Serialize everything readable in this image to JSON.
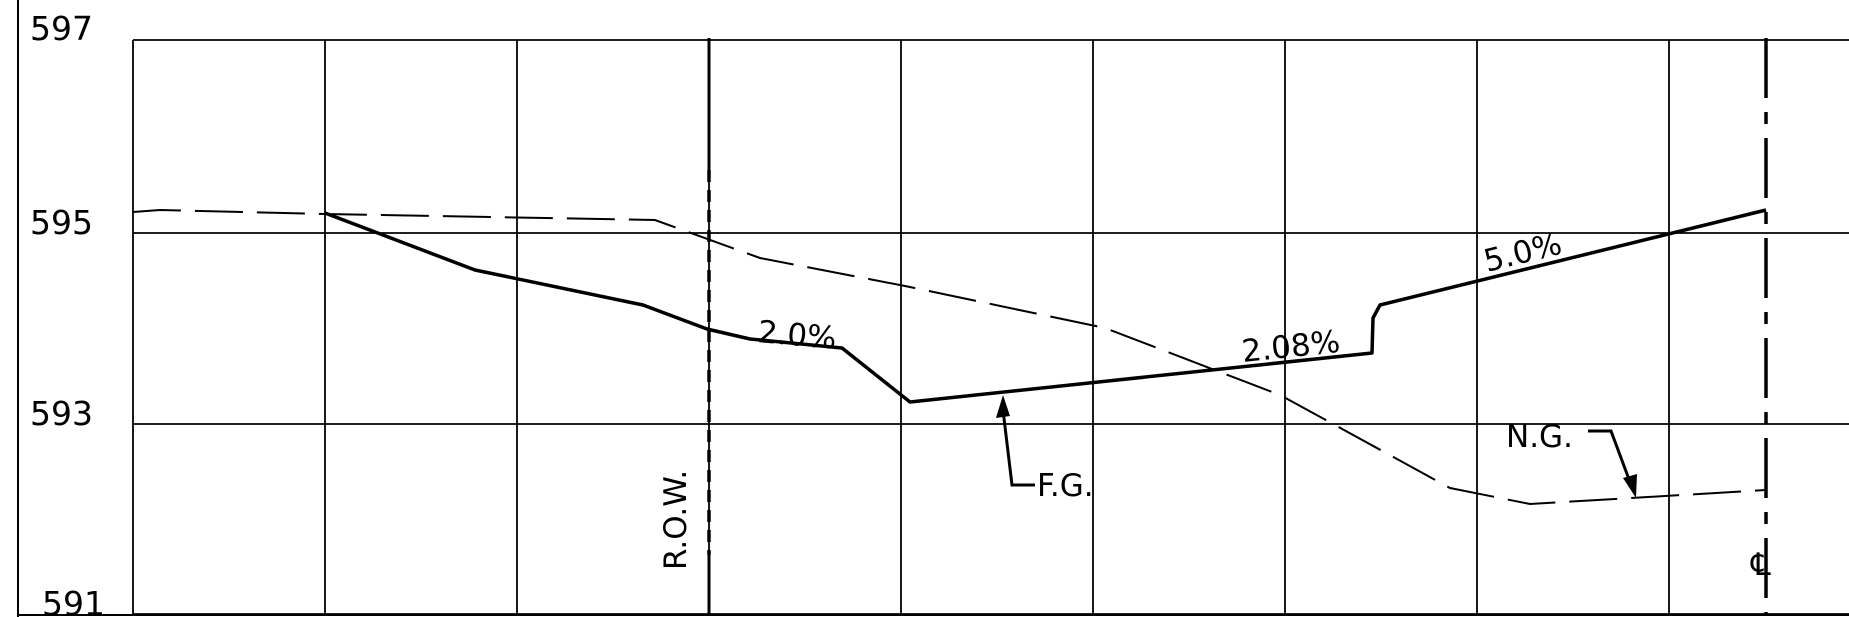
{
  "elevation_labels": {
    "e597": "597",
    "e595": "595",
    "e593": "593",
    "e591": "591"
  },
  "labels": {
    "row": "R.O.W.",
    "centerline": "℄",
    "finished_grade": "F.G.",
    "natural_ground": "N.G.",
    "slope_2_0": "2.0%",
    "slope_2_08": "2.08%",
    "slope_5_0": "5.0%"
  },
  "colors": {
    "ink": "#000000",
    "paper": "#ffffff"
  }
}
